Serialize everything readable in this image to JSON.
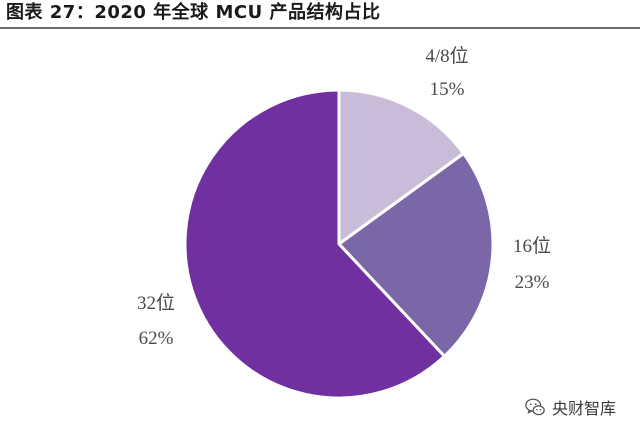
{
  "figure": {
    "title": "图表 27：2020 年全球 MCU 产品结构占比"
  },
  "watermark": {
    "text": "央财智库",
    "icon": "wechat-icon"
  },
  "chart_data": {
    "type": "pie",
    "title": "图表 27：2020 年全球 MCU 产品结构占比",
    "slices": [
      {
        "label": "4/8位",
        "value": 15,
        "display": "15%",
        "color": "#c9bcd9"
      },
      {
        "label": "16位",
        "value": 23,
        "display": "23%",
        "color": "#7b66a7"
      },
      {
        "label": "32位",
        "value": 62,
        "display": "62%",
        "color": "#7030a0"
      }
    ],
    "start_angle_deg": 0,
    "direction": "clockwise",
    "slice_border_color": "#ffffff",
    "label_color": "#4a4a4a"
  }
}
